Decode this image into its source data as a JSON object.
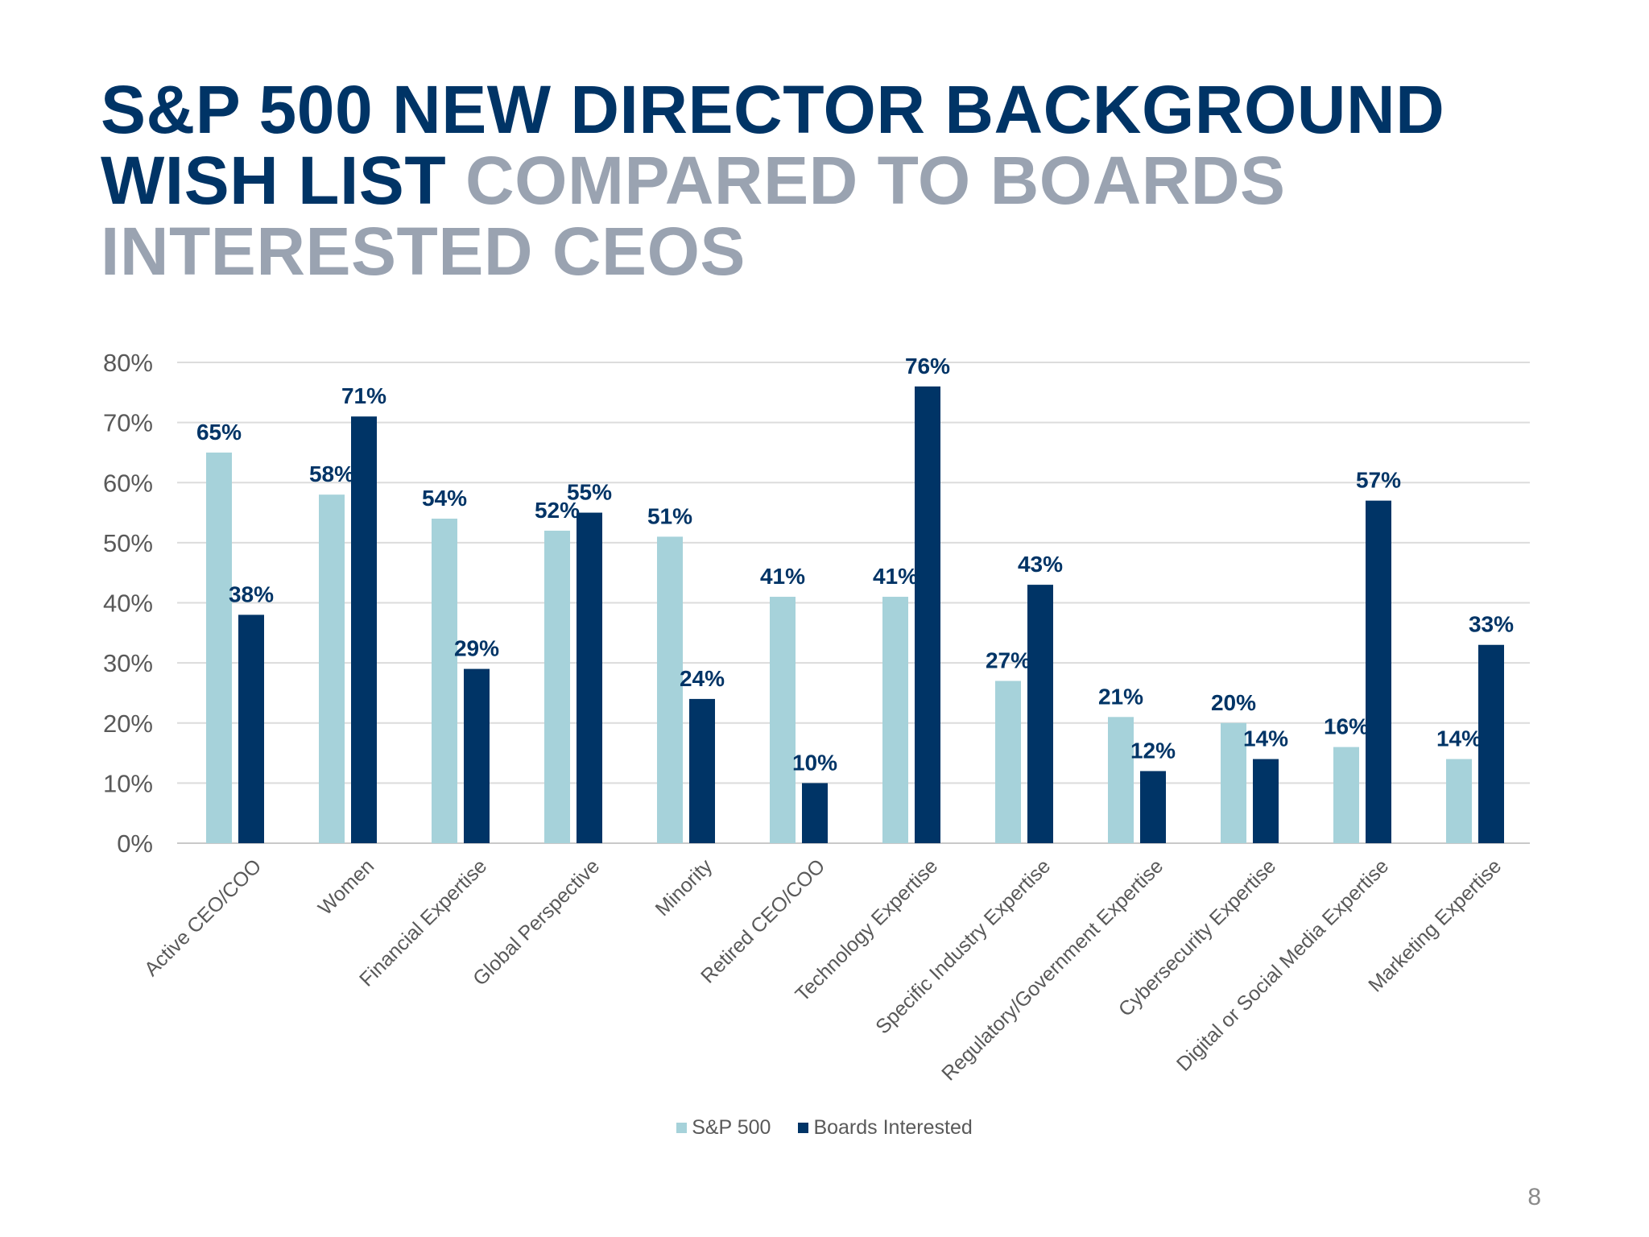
{
  "title": {
    "part1": "S&P 500 NEW DIRECTOR BACKGROUND WISH LIST",
    "part2": " COMPARED TO BOARDS INTERESTED CEOS"
  },
  "colors": {
    "sp500": "#a6d2da",
    "boards": "#003466",
    "title_dark": "#003466",
    "title_grey": "#9aa3b1"
  },
  "chart_data": {
    "type": "bar",
    "title": "S&P 500 NEW DIRECTOR BACKGROUND WISH LIST COMPARED TO BOARDS INTERESTED CEOS",
    "xlabel": "",
    "ylabel": "",
    "ylim": [
      0,
      80
    ],
    "yticks": [
      0,
      10,
      20,
      30,
      40,
      50,
      60,
      70,
      80
    ],
    "ytick_labels": [
      "0%",
      "10%",
      "20%",
      "30%",
      "40%",
      "50%",
      "60%",
      "70%",
      "80%"
    ],
    "grid": true,
    "legend_position": "bottom",
    "categories": [
      "Active CEO/COO",
      "Women",
      "Financial Expertise",
      "Global Perspective",
      "Minority",
      "Retired CEO/COO",
      "Technology Expertise",
      "Specific Industry Expertise",
      "Regulatory/Government Expertise",
      "Cybersecurity Expertise",
      "Digital or Social Media Expertise",
      "Marketing Expertise"
    ],
    "series": [
      {
        "name": "S&P 500",
        "color": "#a6d2da",
        "values": [
          65,
          58,
          54,
          52,
          51,
          41,
          41,
          27,
          21,
          20,
          16,
          14
        ],
        "labels": [
          "65%",
          "58%",
          "54%",
          "52%",
          "51%",
          "41%",
          "41%",
          "27%",
          "21%",
          "20%",
          "16%",
          "14%"
        ]
      },
      {
        "name": "Boards Interested",
        "color": "#003466",
        "values": [
          38,
          71,
          29,
          55,
          24,
          10,
          76,
          43,
          12,
          14,
          57,
          33
        ],
        "labels": [
          "38%",
          "71%",
          "29%",
          "55%",
          "24%",
          "10%",
          "76%",
          "43%",
          "12%",
          "14%",
          "57%",
          "33%"
        ]
      }
    ]
  },
  "legend": {
    "items": [
      "S&P 500",
      "Boards Interested"
    ]
  },
  "page_number": "8"
}
